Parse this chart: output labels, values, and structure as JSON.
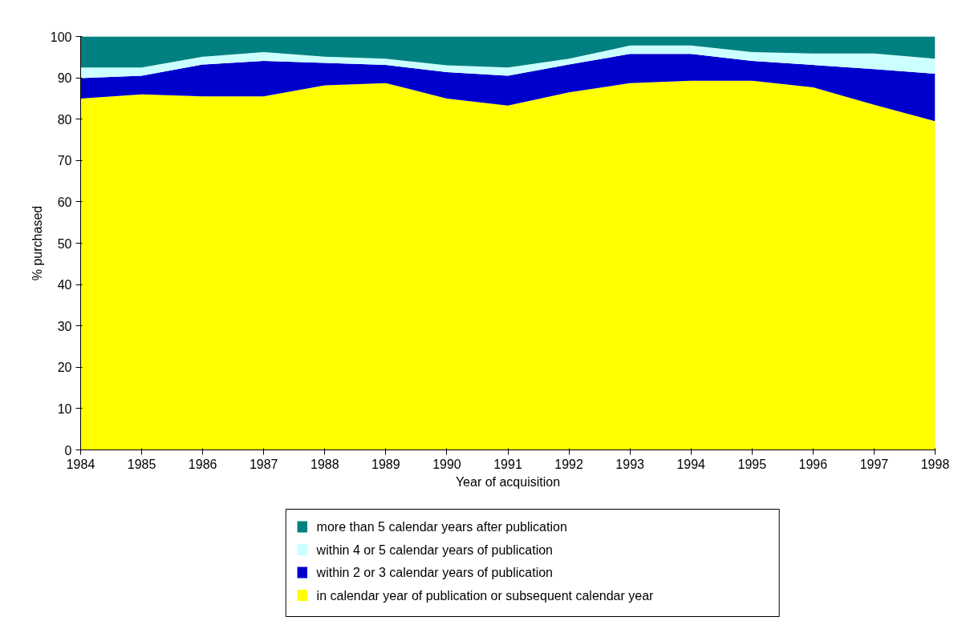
{
  "chart_data": {
    "type": "area",
    "stacked": true,
    "xlabel": "Year of acquisition",
    "ylabel": "% purchased",
    "x": [
      1984,
      1985,
      1986,
      1987,
      1988,
      1989,
      1990,
      1991,
      1992,
      1993,
      1994,
      1995,
      1996,
      1997,
      1998
    ],
    "xlim": [
      1984,
      1998
    ],
    "xticks": [
      1984,
      1985,
      1986,
      1987,
      1988,
      1989,
      1990,
      1991,
      1992,
      1993,
      1994,
      1995,
      1996,
      1997,
      1998
    ],
    "ylim": [
      0,
      100
    ],
    "yticks": [
      0,
      10,
      20,
      30,
      40,
      50,
      60,
      70,
      80,
      90,
      100
    ],
    "grid": false,
    "legend": "bottom",
    "series": [
      {
        "name": "in calendar year of publication or subsequent calendar year",
        "color": "#ffff00",
        "values": [
          85,
          86,
          85.5,
          85.5,
          88.2,
          88.7,
          85,
          83.3,
          86.5,
          88.7,
          89.3,
          89.3,
          87.7,
          83.5,
          79.5
        ]
      },
      {
        "name": "within 2 or 3 calendar years of publication",
        "color": "#0000cc",
        "values": [
          4.9,
          4.5,
          7.7,
          8.6,
          5.4,
          4.4,
          6.4,
          7.2,
          6.7,
          7.1,
          6.5,
          4.8,
          5.4,
          8.6,
          11.5
        ]
      },
      {
        "name": "within 4 or 5 calendar years of publication",
        "color": "#ccffff",
        "values": [
          2.6,
          2.0,
          1.9,
          2.1,
          1.5,
          1.5,
          1.6,
          2.0,
          1.4,
          2.0,
          2.0,
          2.1,
          2.8,
          3.8,
          3.6
        ]
      },
      {
        "name": "more than 5 calendar years after publication",
        "color": "#008080",
        "values": [
          7.5,
          7.5,
          4.9,
          3.8,
          4.9,
          5.4,
          7.0,
          7.5,
          5.4,
          2.2,
          2.2,
          3.8,
          4.1,
          4.1,
          5.4
        ]
      }
    ]
  }
}
